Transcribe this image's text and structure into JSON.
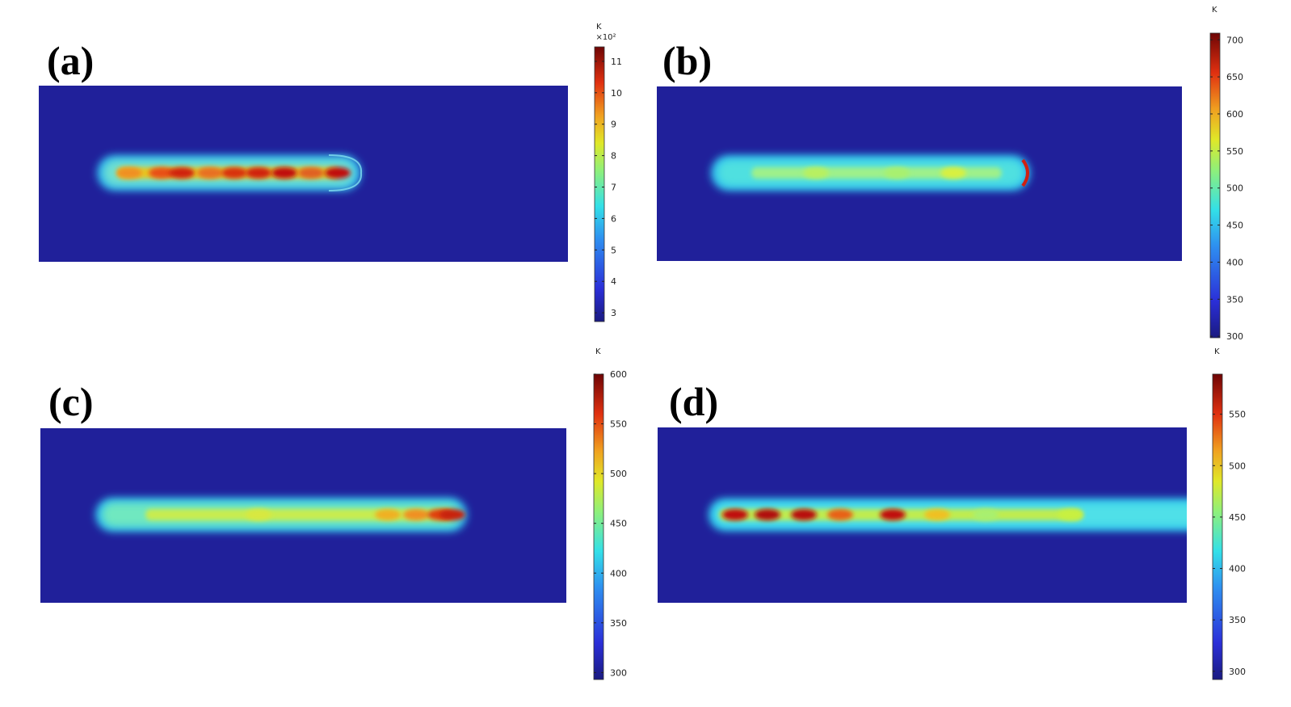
{
  "chart_data": [
    {
      "type": "heatmap",
      "panel_label": "(a)",
      "unit": "K",
      "multiplier": "×10²",
      "colormap": "jet",
      "range": [
        272,
        1146
      ],
      "ticks": [
        3,
        4,
        5,
        6,
        7,
        8,
        9,
        10,
        11
      ],
      "tick_scale": 100,
      "description_values": {
        "background": 293,
        "peak": 1146
      }
    },
    {
      "type": "heatmap",
      "panel_label": "(b)",
      "unit": "K",
      "colormap": "jet",
      "range": [
        298,
        709
      ],
      "ticks": [
        300,
        350,
        400,
        450,
        500,
        550,
        600,
        650,
        700
      ],
      "tick_scale": 1
    },
    {
      "type": "heatmap",
      "panel_label": "(c)",
      "unit": "K",
      "colormap": "jet",
      "range": [
        293,
        600
      ],
      "ticks": [
        300,
        350,
        400,
        450,
        500,
        550,
        600
      ],
      "tick_scale": 1
    },
    {
      "type": "heatmap",
      "panel_label": "(d)",
      "unit": "K",
      "colormap": "jet",
      "range": [
        292,
        589
      ],
      "ticks": [
        300,
        350,
        400,
        450,
        500,
        550
      ],
      "tick_scale": 1
    }
  ],
  "colors": {
    "background_field": "#20209a",
    "jet": [
      "#00007f",
      "#0000ff",
      "#00bfff",
      "#40ffbf",
      "#bfff40",
      "#ffbf00",
      "#ff4000",
      "#7f0000"
    ]
  }
}
